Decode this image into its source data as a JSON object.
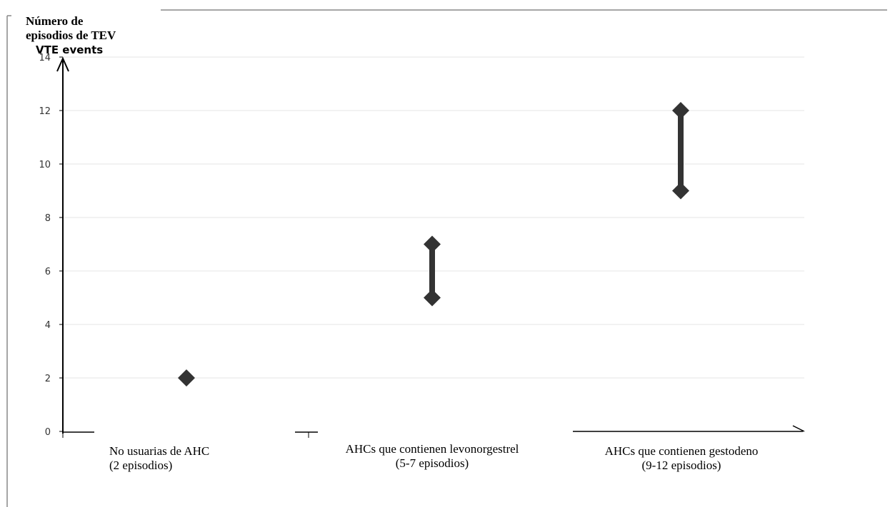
{
  "chart_data": {
    "type": "range",
    "ylabel_lines": [
      "Número de",
      "episodios de TEV"
    ],
    "ylabel_overlap": "VTE events",
    "ylim": [
      0,
      14
    ],
    "yticks": [
      0,
      2,
      4,
      6,
      8,
      10,
      12,
      14
    ],
    "grid": true,
    "categories": [
      {
        "name": "No usuarias de AHC",
        "detail": "(2 episodios)",
        "min": 2,
        "max": 2
      },
      {
        "name": "AHCs que contienen levonorgestrel",
        "detail": "(5-7 episodios)",
        "min": 5,
        "max": 7
      },
      {
        "name": "AHCs que contienen gestodeno",
        "detail": "(9-12 episodios)",
        "min": 9,
        "max": 12
      }
    ],
    "colors": {
      "marker": "#333333",
      "grid": "#e6e6e6",
      "axis": "#000000",
      "frame": "#888888"
    }
  }
}
